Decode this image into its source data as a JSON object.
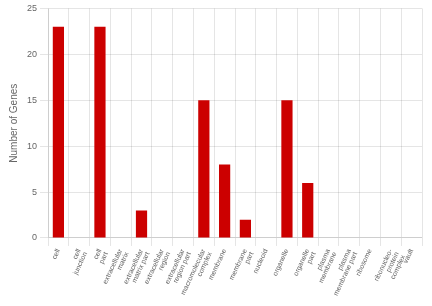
{
  "chart_data": {
    "type": "bar",
    "categories": [
      "cell",
      "cell\njunction",
      "cell\npart",
      "extracellular\nmatrix",
      "extracellular\nmatrix part",
      "extracellular\nregion",
      "extracellular\nregion part",
      "macromolecular\ncomplex",
      "membrane",
      "membrane\npart",
      "nucleoid",
      "organelle",
      "organelle\npart",
      "plasma\nmembrane",
      "plasma\nmembrane part",
      "ribosome",
      "ribonucleo-\nprotein\ncomplex",
      "vault"
    ],
    "values": [
      23,
      0,
      23,
      0,
      3,
      0,
      0,
      15,
      8,
      2,
      0,
      15,
      6,
      0,
      0,
      0,
      0,
      0
    ],
    "color": "#cc0000",
    "ylabel": "Number of Genes",
    "ylim": [
      0,
      25
    ],
    "yticks": [
      0,
      5,
      10,
      15,
      20,
      25
    ],
    "grid": true
  }
}
